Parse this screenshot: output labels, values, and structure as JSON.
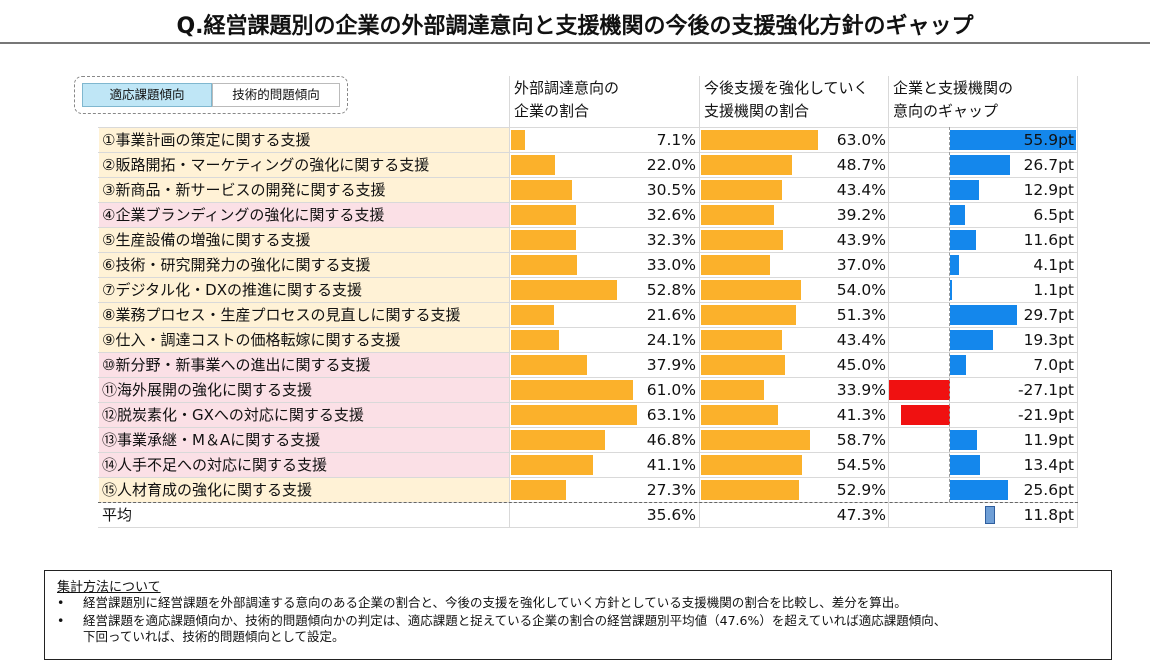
{
  "title": "Q.経営課題別の企業の外部調達意向と支援機関の今後の支援強化方針のギャップ",
  "legend": {
    "adapt_label": "適応課題傾向",
    "tech_label": "技術的問題傾向"
  },
  "headers": {
    "col1": [
      "外部調達意向の",
      "企業の割合"
    ],
    "col2": [
      "今後支援を強化していく",
      "支援機関の割合"
    ],
    "col3": [
      "企業と支援機関の",
      "意向のギャップ"
    ]
  },
  "colors": {
    "adapt_row_bg": "#fff2d6",
    "tech_row_bg": "#fbe0e6",
    "orange_bar": "#fbb12b",
    "gap_positive": "#1487ec",
    "gap_negative": "#f01111"
  },
  "chart_data": {
    "type": "bar",
    "categories": [
      "①事業計画の策定に関する支援",
      "②販路開拓・マーケティングの強化に関する支援",
      "③新商品・新サービスの開発に関する支援",
      "④企業ブランディングの強化に関する支援",
      "⑤生産設備の増強に関する支援",
      "⑥技術・研究開発力の強化に関する支援",
      "⑦デジタル化・DXの推進に関する支援",
      "⑧業務プロセス・生産プロセスの見直しに関する支援",
      "⑨仕入・調達コストの価格転嫁に関する支援",
      "⑩新分野・新事業への進出に関する支援",
      "⑪海外展開の強化に関する支援",
      "⑫脱炭素化・GXへの対応に関する支援",
      "⑬事業承継・M＆Aに関する支援",
      "⑭人手不足への対応に関する支援",
      "⑮人材育成の強化に関する支援"
    ],
    "tendency": [
      "adapt",
      "adapt",
      "adapt",
      "tech",
      "adapt",
      "adapt",
      "adapt",
      "adapt",
      "adapt",
      "tech",
      "tech",
      "tech",
      "tech",
      "tech",
      "adapt"
    ],
    "series": [
      {
        "values": [
          7.1,
          22.0,
          30.5,
          32.6,
          32.3,
          33.0,
          52.8,
          21.6,
          24.1,
          37.9,
          61.0,
          63.1,
          46.8,
          41.1,
          27.3
        ],
        "labels": [
          "7.1%",
          "22.0%",
          "30.5%",
          "32.6%",
          "32.3%",
          "33.0%",
          "52.8%",
          "21.6%",
          "24.1%",
          "37.9%",
          "61.0%",
          "63.1%",
          "46.8%",
          "41.1%",
          "27.3%"
        ]
      },
      {
        "values": [
          63.0,
          48.7,
          43.4,
          39.2,
          43.9,
          37.0,
          54.0,
          51.3,
          43.4,
          45.0,
          33.9,
          41.3,
          58.7,
          54.5,
          52.9
        ],
        "labels": [
          "63.0%",
          "48.7%",
          "43.4%",
          "39.2%",
          "43.9%",
          "37.0%",
          "54.0%",
          "51.3%",
          "43.4%",
          "45.0%",
          "33.9%",
          "41.3%",
          "58.7%",
          "54.5%",
          "52.9%"
        ]
      },
      {
        "values": [
          55.9,
          26.7,
          12.9,
          6.5,
          11.6,
          4.1,
          1.1,
          29.7,
          19.3,
          7.0,
          -27.1,
          -21.9,
          11.9,
          13.4,
          25.6
        ],
        "labels": [
          "55.9pt",
          "26.7pt",
          "12.9pt",
          "6.5pt",
          "11.6pt",
          "4.1pt",
          "1.1pt",
          "29.7pt",
          "19.3pt",
          "7.0pt",
          "-27.1pt",
          "-21.9pt",
          "11.9pt",
          "13.4pt",
          "25.6pt"
        ]
      }
    ],
    "average": {
      "label": "平均",
      "values": [
        35.6,
        47.3,
        11.8
      ],
      "labels": [
        "35.6%",
        "47.3%",
        "11.8pt"
      ]
    }
  },
  "note": {
    "title": "集計方法について",
    "bullet": "•",
    "lines": [
      "経営課題別に経営課題を外部調達する意向のある企業の割合と、今後の支援を強化していく方針としている支援機関の割合を比較し、差分を算出。",
      "経営課題を適応課題傾向か、技術的問題傾向かの判定は、適応課題と捉えている企業の割合の経営課題別平均値（47.6%）を超えていれば適応課題傾向、",
      "下回っていれば、技術的問題傾向として設定。"
    ]
  }
}
